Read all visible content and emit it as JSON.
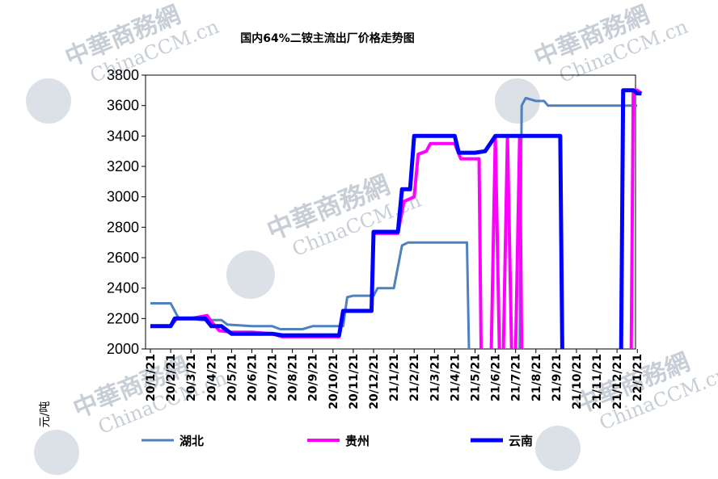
{
  "chart_data": {
    "type": "line",
    "title": "国内64%二铵主流出厂价格走势图",
    "ylabel": "元/吨",
    "xlabel": "",
    "ylim": [
      2000,
      3800
    ],
    "yticks": [
      2000,
      2200,
      2400,
      2600,
      2800,
      3000,
      3200,
      3400,
      3600,
      3800
    ],
    "grid": false,
    "legend_position": "bottom",
    "categories": [
      "20/1/21",
      "20/2/21",
      "20/3/21",
      "20/4/21",
      "20/5/21",
      "20/6/21",
      "20/7/21",
      "20/8/21",
      "20/9/21",
      "20/10/21",
      "20/11/21",
      "20/12/21",
      "21/1/21",
      "21/2/21",
      "21/3/21",
      "21/4/21",
      "21/5/21",
      "21/6/21",
      "21/7/21",
      "21/8/21",
      "21/9/21",
      "21/10/21",
      "21/11/21",
      "21/12/21",
      "22/1/21"
    ],
    "series": [
      {
        "name": "湖北",
        "color": "#4f81bd",
        "points": [
          [
            0,
            2300
          ],
          [
            1,
            2300
          ],
          [
            1.4,
            2200
          ],
          [
            2,
            2200
          ],
          [
            2.5,
            2190
          ],
          [
            3.5,
            2190
          ],
          [
            3.8,
            2160
          ],
          [
            5,
            2150
          ],
          [
            6,
            2150
          ],
          [
            6.4,
            2130
          ],
          [
            7.5,
            2130
          ],
          [
            8,
            2150
          ],
          [
            9,
            2150
          ],
          [
            9.5,
            2150
          ],
          [
            9.7,
            2340
          ],
          [
            10,
            2350
          ],
          [
            11,
            2350
          ],
          [
            11.2,
            2400
          ],
          [
            12,
            2400
          ],
          [
            12.4,
            2680
          ],
          [
            12.7,
            2700
          ],
          [
            14,
            2700
          ],
          [
            15,
            2700
          ],
          [
            15.6,
            2700
          ],
          [
            15.7,
            1980
          ]
        ],
        "points_b": [
          [
            18.2,
            1980
          ],
          [
            18.3,
            3600
          ],
          [
            18.5,
            3650
          ],
          [
            19,
            3630
          ],
          [
            19.4,
            3630
          ],
          [
            19.6,
            3600
          ],
          [
            20,
            3600
          ],
          [
            21,
            3600
          ],
          [
            22,
            3600
          ],
          [
            23,
            3600
          ],
          [
            24,
            3600
          ]
        ]
      },
      {
        "name": "贵州",
        "color": "#ff00ff",
        "points": [
          [
            0,
            2150
          ],
          [
            1,
            2150
          ],
          [
            1.3,
            2200
          ],
          [
            2,
            2200
          ],
          [
            2.8,
            2220
          ],
          [
            3,
            2180
          ],
          [
            3.4,
            2120
          ],
          [
            4,
            2110
          ],
          [
            5,
            2110
          ],
          [
            6,
            2100
          ],
          [
            6.5,
            2080
          ],
          [
            8,
            2080
          ],
          [
            9,
            2080
          ],
          [
            9.3,
            2080
          ],
          [
            9.5,
            2250
          ],
          [
            10,
            2250
          ],
          [
            10.9,
            2250
          ],
          [
            11,
            2760
          ],
          [
            12,
            2760
          ],
          [
            12.2,
            2760
          ],
          [
            12.5,
            2970
          ],
          [
            13,
            3000
          ],
          [
            13.2,
            3280
          ],
          [
            13.6,
            3300
          ],
          [
            13.8,
            3350
          ],
          [
            15,
            3350
          ],
          [
            15.3,
            3250
          ],
          [
            16,
            3250
          ],
          [
            16.2,
            3250
          ],
          [
            16.3,
            1980
          ]
        ],
        "points_b": [
          [
            16.8,
            1980
          ],
          [
            17,
            3400
          ],
          [
            17.2,
            1980
          ]
        ],
        "points_c": [
          [
            17.4,
            1980
          ],
          [
            17.6,
            3400
          ],
          [
            17.8,
            1980
          ]
        ],
        "points_d": [
          [
            18,
            1980
          ],
          [
            18.2,
            3400
          ],
          [
            18.3,
            1980
          ]
        ],
        "points_e": [
          [
            23.7,
            1980
          ],
          [
            23.8,
            3700
          ],
          [
            24,
            3700
          ],
          [
            24.2,
            3680
          ]
        ]
      },
      {
        "name": "云南",
        "color": "#0000ff",
        "points": [
          [
            0,
            2150
          ],
          [
            1,
            2150
          ],
          [
            1.2,
            2200
          ],
          [
            2,
            2200
          ],
          [
            2.7,
            2200
          ],
          [
            3,
            2150
          ],
          [
            3.5,
            2150
          ],
          [
            4,
            2100
          ],
          [
            5,
            2100
          ],
          [
            6,
            2100
          ],
          [
            6.5,
            2090
          ],
          [
            7,
            2090
          ],
          [
            8,
            2090
          ],
          [
            9,
            2090
          ],
          [
            9.3,
            2090
          ],
          [
            9.5,
            2250
          ],
          [
            10,
            2250
          ],
          [
            10.9,
            2250
          ],
          [
            11,
            2770
          ],
          [
            12,
            2770
          ],
          [
            12.2,
            2770
          ],
          [
            12.4,
            3050
          ],
          [
            12.8,
            3050
          ],
          [
            13,
            3400
          ],
          [
            14,
            3400
          ],
          [
            15,
            3400
          ],
          [
            15.2,
            3290
          ],
          [
            16,
            3290
          ],
          [
            16.5,
            3300
          ],
          [
            16.9,
            3380
          ],
          [
            17,
            3400
          ],
          [
            18,
            3400
          ],
          [
            19,
            3400
          ],
          [
            20,
            3400
          ],
          [
            20.2,
            3400
          ],
          [
            20.3,
            1980
          ]
        ],
        "points_b": [
          [
            23.2,
            1980
          ],
          [
            23.3,
            3700
          ],
          [
            23.8,
            3700
          ],
          [
            24,
            3680
          ],
          [
            24.2,
            3680
          ]
        ]
      }
    ]
  }
}
